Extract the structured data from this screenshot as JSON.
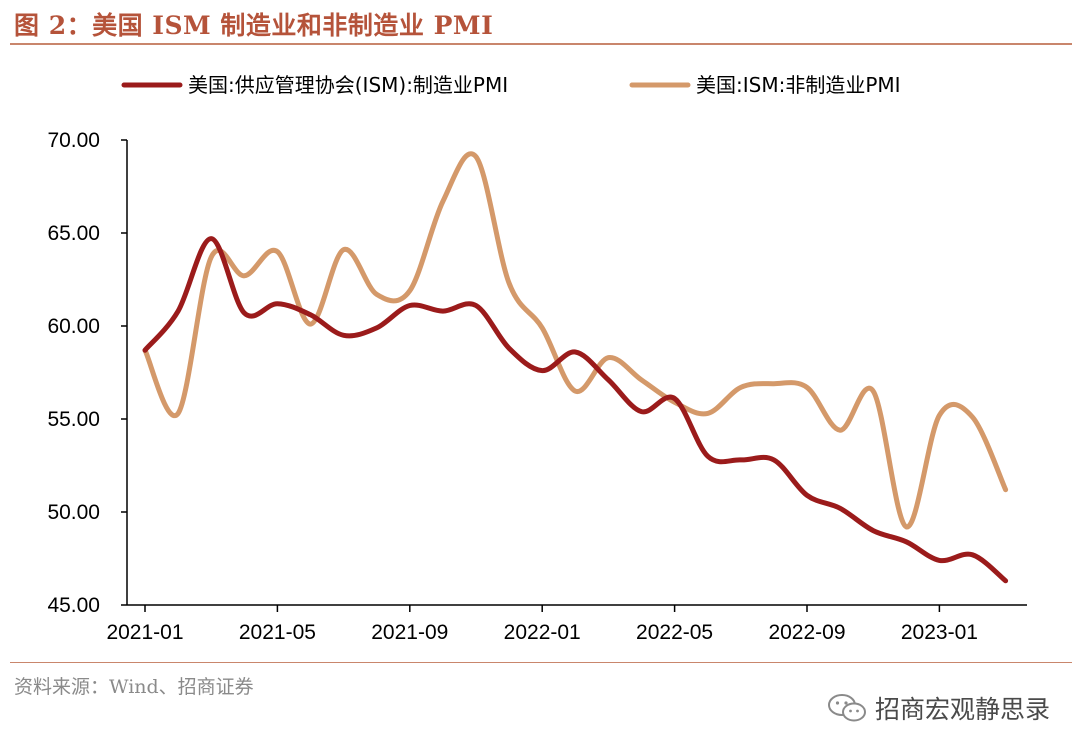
{
  "header": {
    "title": "图 2：美国 ISM 制造业和非制造业 PMI"
  },
  "footer": {
    "source": "资料来源：Wind、招商证券",
    "watermark": "招商宏观静思录"
  },
  "colors": {
    "manufacturing": "#9b1b1b",
    "non_manufacturing": "#d4996a",
    "title": "#b5533a"
  },
  "icons": {
    "watermark": "wechat-icon"
  },
  "chart_data": {
    "type": "line",
    "title": "",
    "xlabel": "",
    "ylabel": "",
    "ylim": [
      45,
      70
    ],
    "y_ticks": [
      "45.00",
      "50.00",
      "55.00",
      "60.00",
      "65.00",
      "70.00"
    ],
    "x_ticks": [
      "2021-01",
      "2021-05",
      "2021-09",
      "2022-01",
      "2022-05",
      "2022-09",
      "2023-01"
    ],
    "grid": false,
    "legend": "top",
    "x": [
      "2021-01",
      "2021-02",
      "2021-03",
      "2021-04",
      "2021-05",
      "2021-06",
      "2021-07",
      "2021-08",
      "2021-09",
      "2021-10",
      "2021-11",
      "2021-12",
      "2022-01",
      "2022-02",
      "2022-03",
      "2022-04",
      "2022-05",
      "2022-06",
      "2022-07",
      "2022-08",
      "2022-09",
      "2022-10",
      "2022-11",
      "2022-12",
      "2023-01",
      "2023-02",
      "2023-03"
    ],
    "series": [
      {
        "name": "美国:供应管理协会(ISM):制造业PMI",
        "color": "#9b1b1b",
        "values": [
          58.7,
          60.8,
          64.7,
          60.7,
          61.2,
          60.6,
          59.5,
          59.9,
          61.1,
          60.8,
          61.1,
          58.8,
          57.6,
          58.6,
          57.1,
          55.4,
          56.1,
          53.0,
          52.8,
          52.8,
          50.9,
          50.2,
          49.0,
          48.4,
          47.4,
          47.7,
          46.3
        ]
      },
      {
        "name": "美国:ISM:非制造业PMI",
        "color": "#d4996a",
        "values": [
          58.7,
          55.3,
          63.7,
          62.7,
          64.0,
          60.1,
          64.1,
          61.7,
          61.9,
          66.7,
          69.1,
          62.3,
          59.9,
          56.5,
          58.3,
          57.1,
          55.9,
          55.3,
          56.7,
          56.9,
          56.7,
          54.4,
          56.5,
          49.2,
          55.2,
          55.1,
          51.2
        ]
      }
    ]
  }
}
